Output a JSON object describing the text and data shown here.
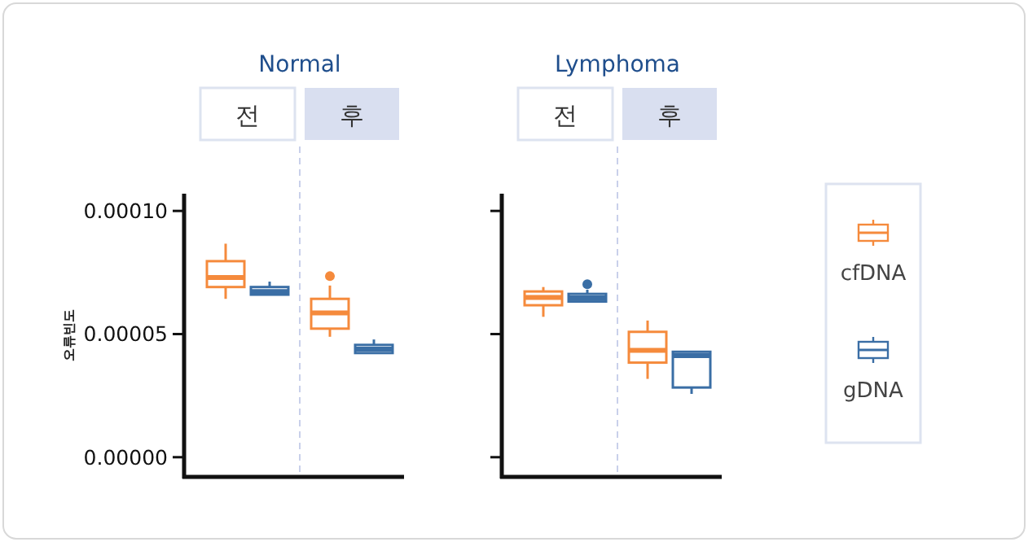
{
  "chart_data": [
    {
      "type": "box",
      "title": "Normal",
      "ylabel": "오류빈도",
      "categories": [
        "전",
        "후"
      ],
      "ylim": [
        -8e-06,
        0.000107
      ],
      "yticks": [
        {
          "value": 0.0,
          "label": "0.00000"
        },
        {
          "value": 5e-05,
          "label": "0.00005"
        },
        {
          "value": 0.0001,
          "label": "0.00010"
        }
      ],
      "legend": "right",
      "series": [
        {
          "name": "cfDNA",
          "color": "#f58a3c",
          "boxes": [
            {
              "low": 6.43e-05,
              "q1": 6.91e-05,
              "median": 7.3e-05,
              "q3": 7.96e-05,
              "high": 8.67e-05
            },
            {
              "low": 4.89e-05,
              "q1": 5.22e-05,
              "median": 5.86e-05,
              "q3": 6.43e-05,
              "high": 6.97e-05,
              "outliers": [
                7.35e-05
              ]
            }
          ]
        },
        {
          "name": "gDNA",
          "color": "#3a6ea5",
          "boxes": [
            {
              "low": 6.6e-05,
              "q1": 6.6e-05,
              "median": 6.73e-05,
              "q3": 6.91e-05,
              "high": 7.13e-05
            },
            {
              "low": 4.23e-05,
              "q1": 4.23e-05,
              "median": 4.39e-05,
              "q3": 4.56e-05,
              "high": 4.78e-05
            }
          ]
        }
      ]
    },
    {
      "type": "box",
      "title": "Lymphoma",
      "categories": [
        "전",
        "후"
      ],
      "ylim": [
        -8e-06,
        0.000107
      ],
      "yticks": [
        0.0,
        5e-05,
        0.0001
      ],
      "tick_labels": "x",
      "series": [
        {
          "color": "#f58a3c",
          "boxes": [
            {
              "low": 5.7e-05,
              "q1": 6.17e-05,
              "median": 6.49e-05,
              "q3": 6.73e-05,
              "high": 6.91e-05
            },
            {
              "low": 3.18e-05,
              "q1": 3.84e-05,
              "median": 4.34e-05,
              "q3": 5.09e-05,
              "high": 5.55e-05
            }
          ]
        },
        {
          "color": "#3a6ea5",
          "boxes": [
            {
              "low": 6.32e-05,
              "q1": 6.32e-05,
              "median": 6.47e-05,
              "q3": 6.63e-05,
              "high": 6.8e-05,
              "outliers": [
                7.02e-05
              ]
            },
            {
              "low": 2.57e-05,
              "q1": 2.83e-05,
              "median": 4.12e-05,
              "q3": 4.28e-05,
              "high": 4.28e-05
            }
          ]
        }
      ]
    }
  ]
}
